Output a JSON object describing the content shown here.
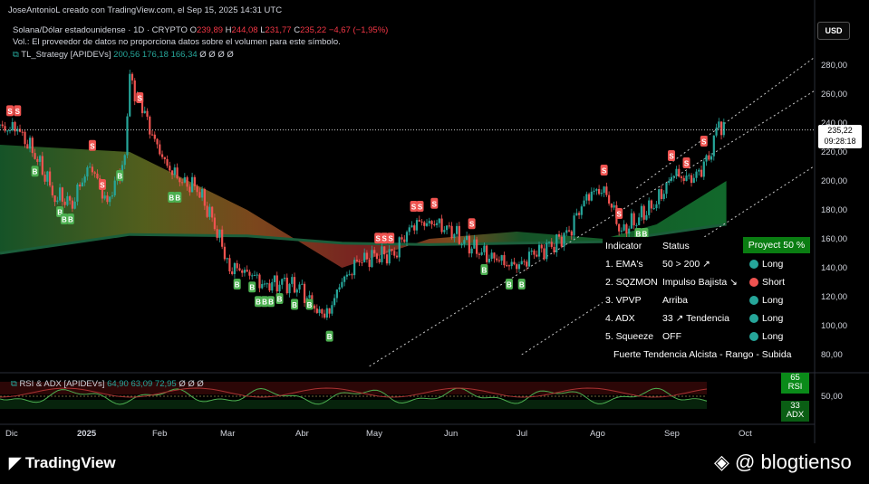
{
  "header": {
    "credit": "JoseAntonioL creado con TradingView.com, el Sep 15, 2025 14:31 UTC",
    "title": "Solana/Dólar estadounidense · 1D · CRYPTO",
    "ohlc": {
      "o_label": "O",
      "o": "239,89",
      "h_label": "H",
      "h": "244,08",
      "l_label": "L",
      "l": "231,77",
      "c_label": "C",
      "c": "235,22",
      "change": "−4,67 (−1,95%)"
    },
    "volume_note": "Vol.: El proveedor de datos no proporciona datos sobre el volumen para este símbolo.",
    "strategy": {
      "name": "TL_Strategy [APIDEVs]",
      "v1": "200,56",
      "v2": "176,18",
      "v3": "166,34",
      "tail": "Ø Ø Ø Ø"
    }
  },
  "currency_button": "USD",
  "price_tag": {
    "price": "235,22",
    "time": "09:28:18"
  },
  "y_axis": {
    "labels": [
      "280,00",
      "260,00",
      "240,00",
      "220,00",
      "200,00",
      "180,00",
      "160,00",
      "140,00",
      "120,00",
      "100,00",
      "80,00"
    ]
  },
  "x_axis": {
    "labels": [
      "Dic",
      "2025",
      "Feb",
      "Mar",
      "Abr",
      "May",
      "Jun",
      "Jul",
      "Ago",
      "Sep",
      "Oct"
    ]
  },
  "sub_indicator": {
    "name": "RSI & ADX [APIDEVs]",
    "v1": "64,90",
    "v2": "63,09",
    "v3": "72,95",
    "tail": "Ø Ø Ø",
    "y_label": "50,00",
    "rsi_value": "65",
    "rsi_label": "RSI",
    "adx_value": "33",
    "adx_label": "ADX"
  },
  "indicator_table": {
    "head_indicator": "Indicator",
    "head_status": "Status",
    "proyect": "Proyect 50 %",
    "rows": [
      {
        "name": "1. EMA's",
        "status": "50 > 200 ↗",
        "signal": "Long",
        "color": "#26a69a"
      },
      {
        "name": "2. SQZMON",
        "status": "Impulso Bajista ↘",
        "signal": "Short",
        "color": "#ef5350"
      },
      {
        "name": "3. VPVP",
        "status": "Arriba",
        "signal": "Long",
        "color": "#26a69a"
      },
      {
        "name": "4. ADX",
        "status": "33 ↗ Tendencia",
        "signal": "Long",
        "color": "#26a69a"
      },
      {
        "name": "5. Squeeze",
        "status": "OFF",
        "signal": "Long",
        "color": "#26a69a"
      }
    ],
    "footer": "Fuerte Tendencia Alcista - Rango - Subida"
  },
  "branding": {
    "tradingview": "TradingView",
    "watermark": "@ blogtienso"
  },
  "colors": {
    "bg": "#000000",
    "up": "#26a69a",
    "down": "#ef5350",
    "ema_fast": "#26a69a",
    "ema_slow": "#1b5e3b",
    "signal_buy": "#4caf50",
    "signal_sell": "#ef5350"
  },
  "chart_data": {
    "type": "candlestick",
    "symbol": "SOLUSD",
    "timeframe": "1D",
    "ylim": [
      70,
      295
    ],
    "x_range": [
      "2024-11-28",
      "2025-10-20"
    ],
    "close_points": [
      {
        "date": "2024-11-28",
        "close": 236
      },
      {
        "date": "2024-12-05",
        "close": 236
      },
      {
        "date": "2024-12-12",
        "close": 218
      },
      {
        "date": "2024-12-20",
        "close": 190
      },
      {
        "date": "2024-12-27",
        "close": 185
      },
      {
        "date": "2025-01-03",
        "close": 212
      },
      {
        "date": "2025-01-10",
        "close": 185
      },
      {
        "date": "2025-01-17",
        "close": 215
      },
      {
        "date": "2025-01-19",
        "close": 270
      },
      {
        "date": "2025-01-25",
        "close": 245
      },
      {
        "date": "2025-02-01",
        "close": 215
      },
      {
        "date": "2025-02-08",
        "close": 200
      },
      {
        "date": "2025-02-15",
        "close": 195
      },
      {
        "date": "2025-02-22",
        "close": 170
      },
      {
        "date": "2025-02-28",
        "close": 140
      },
      {
        "date": "2025-03-07",
        "close": 138
      },
      {
        "date": "2025-03-14",
        "close": 128
      },
      {
        "date": "2025-03-21",
        "close": 130
      },
      {
        "date": "2025-03-28",
        "close": 126
      },
      {
        "date": "2025-04-07",
        "close": 104
      },
      {
        "date": "2025-04-14",
        "close": 130
      },
      {
        "date": "2025-04-21",
        "close": 145
      },
      {
        "date": "2025-04-28",
        "close": 148
      },
      {
        "date": "2025-05-05",
        "close": 150
      },
      {
        "date": "2025-05-12",
        "close": 170
      },
      {
        "date": "2025-05-19",
        "close": 172
      },
      {
        "date": "2025-05-26",
        "close": 168
      },
      {
        "date": "2025-06-02",
        "close": 158
      },
      {
        "date": "2025-06-09",
        "close": 150
      },
      {
        "date": "2025-06-16",
        "close": 145
      },
      {
        "date": "2025-06-23",
        "close": 140
      },
      {
        "date": "2025-06-30",
        "close": 150
      },
      {
        "date": "2025-07-07",
        "close": 155
      },
      {
        "date": "2025-07-14",
        "close": 165
      },
      {
        "date": "2025-07-21",
        "close": 190
      },
      {
        "date": "2025-07-28",
        "close": 195
      },
      {
        "date": "2025-08-04",
        "close": 165
      },
      {
        "date": "2025-08-11",
        "close": 175
      },
      {
        "date": "2025-08-18",
        "close": 185
      },
      {
        "date": "2025-08-25",
        "close": 205
      },
      {
        "date": "2025-09-01",
        "close": 200
      },
      {
        "date": "2025-09-08",
        "close": 215
      },
      {
        "date": "2025-09-12",
        "close": 240
      },
      {
        "date": "2025-09-15",
        "close": 235
      }
    ],
    "ema_fast": [
      {
        "date": "2024-11-28",
        "v": 225
      },
      {
        "date": "2025-01-19",
        "v": 220
      },
      {
        "date": "2025-03-07",
        "v": 180
      },
      {
        "date": "2025-04-14",
        "v": 140
      },
      {
        "date": "2025-05-19",
        "v": 160
      },
      {
        "date": "2025-06-23",
        "v": 165
      },
      {
        "date": "2025-07-28",
        "v": 160
      },
      {
        "date": "2025-08-18",
        "v": 170
      },
      {
        "date": "2025-09-15",
        "v": 200
      }
    ],
    "ema_slow": [
      {
        "date": "2024-11-28",
        "v": 150
      },
      {
        "date": "2025-01-19",
        "v": 163
      },
      {
        "date": "2025-03-07",
        "v": 162
      },
      {
        "date": "2025-04-14",
        "v": 157
      },
      {
        "date": "2025-05-19",
        "v": 156
      },
      {
        "date": "2025-06-23",
        "v": 157
      },
      {
        "date": "2025-07-28",
        "v": 158
      },
      {
        "date": "2025-08-18",
        "v": 163
      },
      {
        "date": "2025-09-15",
        "v": 170
      }
    ],
    "channel": {
      "upper": [
        {
          "date": "2025-08-10",
          "v": 195
        },
        {
          "date": "2025-10-20",
          "v": 285
        }
      ],
      "lower": [
        {
          "date": "2025-04-25",
          "v": 72
        },
        {
          "date": "2025-10-20",
          "v": 262
        }
      ],
      "mid": [
        {
          "date": "2025-06-25",
          "v": 80
        },
        {
          "date": "2025-10-20",
          "v": 210
        }
      ]
    },
    "signals": [
      {
        "date": "2024-12-02",
        "type": "S"
      },
      {
        "date": "2024-12-05",
        "type": "S"
      },
      {
        "date": "2024-12-12",
        "type": "B"
      },
      {
        "date": "2024-12-22",
        "type": "B"
      },
      {
        "date": "2024-12-25",
        "type": "BB"
      },
      {
        "date": "2025-01-04",
        "type": "S"
      },
      {
        "date": "2025-01-08",
        "type": "S"
      },
      {
        "date": "2025-01-15",
        "type": "B"
      },
      {
        "date": "2025-01-23",
        "type": "S"
      },
      {
        "date": "2025-02-06",
        "type": "BB"
      },
      {
        "date": "2025-03-03",
        "type": "B"
      },
      {
        "date": "2025-03-09",
        "type": "B"
      },
      {
        "date": "2025-03-14",
        "type": "BBB"
      },
      {
        "date": "2025-03-20",
        "type": "B"
      },
      {
        "date": "2025-03-26",
        "type": "B"
      },
      {
        "date": "2025-04-01",
        "type": "B"
      },
      {
        "date": "2025-04-09",
        "type": "B"
      },
      {
        "date": "2025-05-01",
        "type": "SSS"
      },
      {
        "date": "2025-05-14",
        "type": "SS"
      },
      {
        "date": "2025-05-21",
        "type": "S"
      },
      {
        "date": "2025-06-05",
        "type": "S"
      },
      {
        "date": "2025-06-10",
        "type": "B"
      },
      {
        "date": "2025-06-20",
        "type": "B"
      },
      {
        "date": "2025-06-25",
        "type": "B"
      },
      {
        "date": "2025-07-28",
        "type": "S"
      },
      {
        "date": "2025-08-03",
        "type": "S"
      },
      {
        "date": "2025-08-12",
        "type": "BB"
      },
      {
        "date": "2025-08-24",
        "type": "S"
      },
      {
        "date": "2025-08-30",
        "type": "S"
      },
      {
        "date": "2025-09-06",
        "type": "S"
      }
    ],
    "rsi": {
      "value": 65,
      "label": "RSI"
    },
    "adx": {
      "value": 33,
      "label": "ADX"
    }
  }
}
